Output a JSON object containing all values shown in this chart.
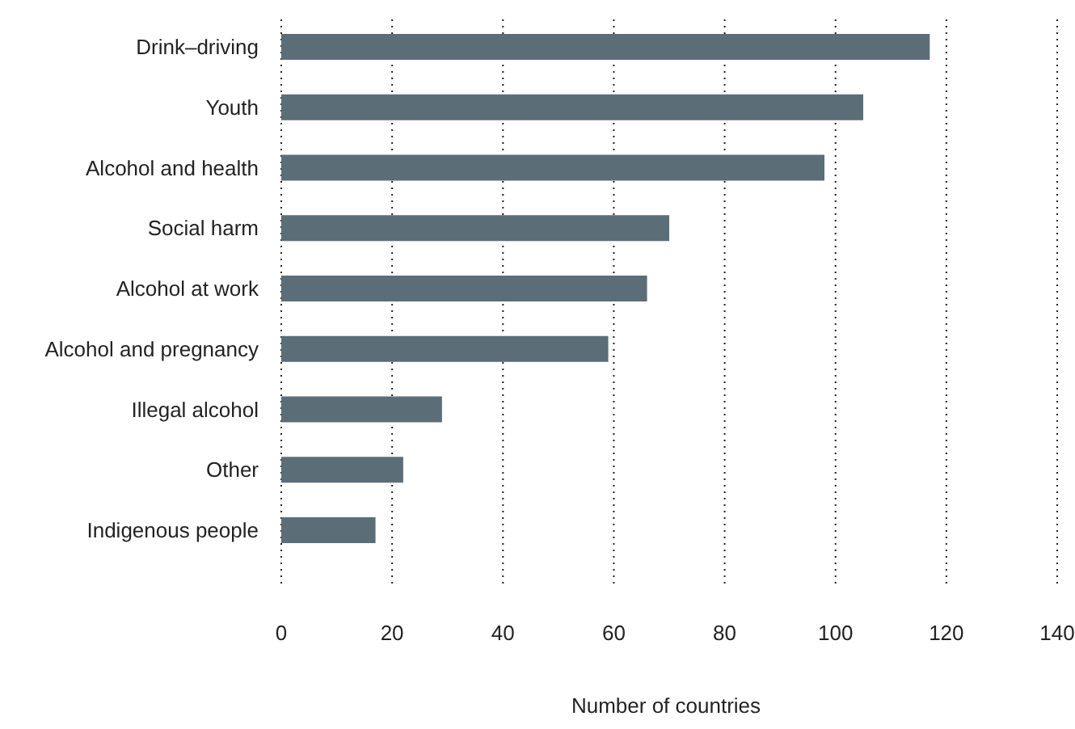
{
  "chart_data": {
    "type": "bar",
    "orientation": "horizontal",
    "xlabel": "Number of countries",
    "categories": [
      "Drink–driving",
      "Youth",
      "Alcohol and health",
      "Social harm",
      "Alcohol at work",
      "Alcohol and pregnancy",
      "Illegal alcohol",
      "Other",
      "Indigenous people"
    ],
    "values": [
      117,
      105,
      98,
      70,
      66,
      59,
      29,
      22,
      17
    ],
    "color": "#5b6e78",
    "xlim": [
      0,
      140
    ],
    "xticks": [
      0,
      20,
      40,
      60,
      80,
      100,
      120,
      140
    ],
    "grid": "x"
  }
}
